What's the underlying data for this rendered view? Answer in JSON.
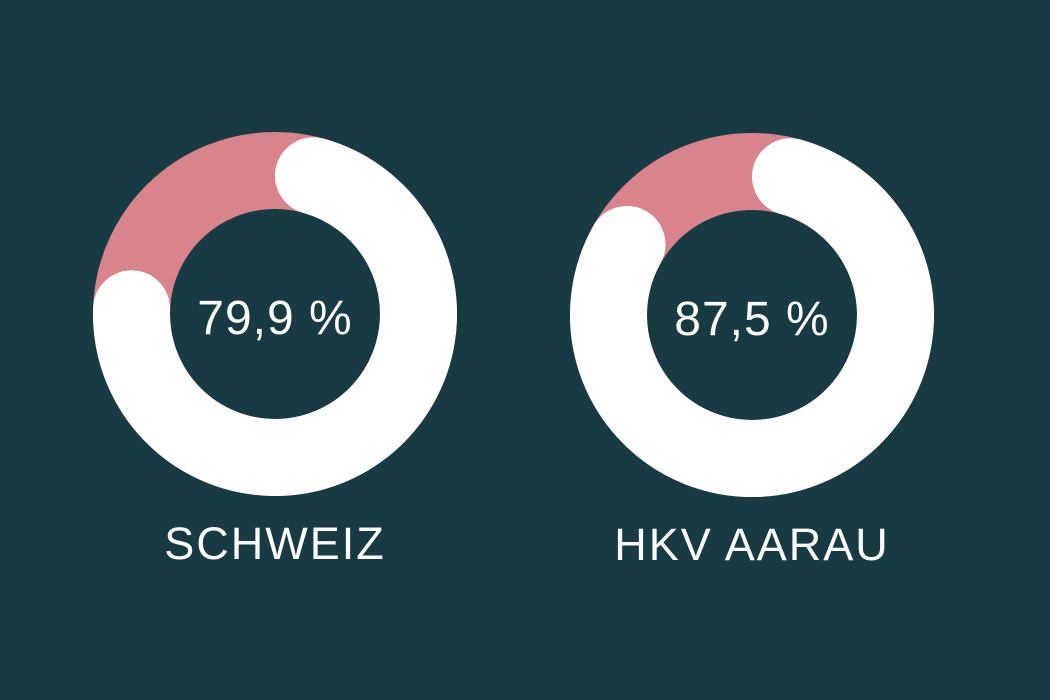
{
  "page": {
    "background_color": "#173a43",
    "text_color": "#fcfcfa"
  },
  "chart_data": [
    {
      "type": "pie",
      "variant": "donut",
      "label": "SCHWEIZ",
      "center_value_label": "79,9 %",
      "start_angle_deg": 0,
      "rounded_caps": true,
      "legend": "none",
      "slices": [
        {
          "name": "value",
          "value_pct": 79.9,
          "color": "#ffffff"
        },
        {
          "name": "remainder",
          "value_pct": 20.1,
          "color": "#d9848c"
        }
      ]
    },
    {
      "type": "pie",
      "variant": "donut",
      "label": "HKV AARAU",
      "center_value_label": "87,5 %",
      "start_angle_deg": 0,
      "rounded_caps": true,
      "legend": "none",
      "slices": [
        {
          "name": "value",
          "value_pct": 87.5,
          "color": "#ffffff"
        },
        {
          "name": "remainder",
          "value_pct": 12.5,
          "color": "#d9848c"
        }
      ]
    }
  ]
}
